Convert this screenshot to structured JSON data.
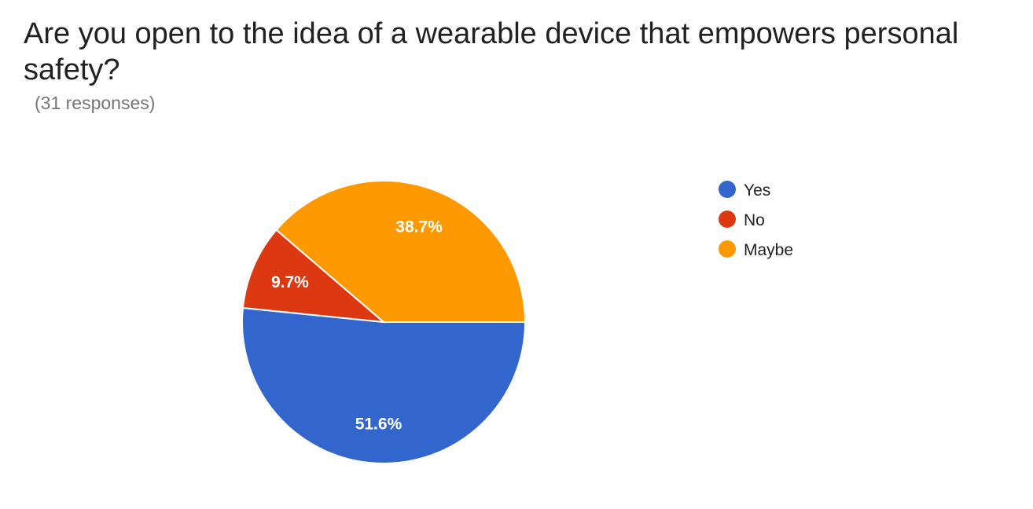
{
  "chart_data": {
    "type": "pie",
    "title": "Are you open to the idea of a wearable device that empowers personal safety?",
    "subtitle": "(31 responses)",
    "legend_position": "right",
    "categories": [
      "Yes",
      "No",
      "Maybe"
    ],
    "values": [
      51.6,
      9.7,
      38.7
    ],
    "data_labels": [
      "51.6%",
      "9.7%",
      "38.7%"
    ],
    "colors": [
      "#3366cc",
      "#dc3912",
      "#ff9900"
    ]
  }
}
